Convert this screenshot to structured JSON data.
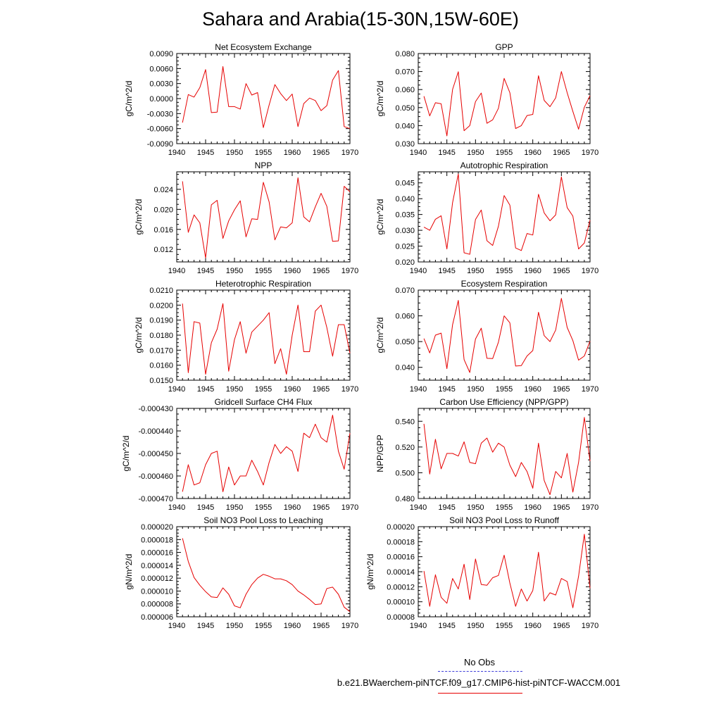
{
  "title": "Sahara and Arabia(15-30N,15W-60E)",
  "legend": {
    "obs_label": "No Obs",
    "obs_color": "#3b3bd9",
    "case_label": "b.e21.BWaerchem-piNTCF.f09_g17.CMIP6-hist-piNTCF-WACCM.001",
    "case_color": "#e60000"
  },
  "chart_data": [
    {
      "type": "line",
      "title": "Net Ecosystem Exchange",
      "ylabel": "gC/m^2/d",
      "xlim": [
        1940,
        1970
      ],
      "ylim": [
        -0.009,
        0.009
      ],
      "xticks": [
        "1940",
        "1945",
        "1950",
        "1955",
        "1960",
        "1965",
        "1970"
      ],
      "yticks": [
        "-0.0090",
        "-0.0060",
        "-0.0030",
        "0.0000",
        "0.0030",
        "0.0060",
        "0.0090"
      ],
      "series": [
        {
          "color": "#e60000",
          "x": [
            1941,
            1942,
            1943,
            1944,
            1945,
            1946,
            1947,
            1948,
            1949,
            1950,
            1951,
            1952,
            1953,
            1954,
            1955,
            1956,
            1957,
            1958,
            1959,
            1960,
            1961,
            1962,
            1963,
            1964,
            1965,
            1966,
            1967,
            1968,
            1969,
            1970
          ],
          "values": [
            -0.0048,
            0.0008,
            0.0003,
            0.0022,
            0.0058,
            -0.0028,
            -0.0027,
            0.0064,
            -0.0016,
            -0.0016,
            -0.0021,
            0.003,
            0.0007,
            0.0012,
            -0.0058,
            -0.0013,
            0.0028,
            0.001,
            -0.0004,
            0.0009,
            -0.0056,
            -0.001,
            0.0001,
            -0.0004,
            -0.0024,
            -0.0014,
            0.0037,
            0.0056,
            -0.0056,
            -0.006
          ]
        }
      ]
    },
    {
      "type": "line",
      "title": "GPP",
      "ylabel": "gC/m^2/d",
      "xlim": [
        1940,
        1970
      ],
      "ylim": [
        0.03,
        0.08
      ],
      "xticks": [
        "1940",
        "1945",
        "1950",
        "1955",
        "1960",
        "1965",
        "1970"
      ],
      "yticks": [
        "0.030",
        "0.040",
        "0.050",
        "0.060",
        "0.070",
        "0.080"
      ],
      "series": [
        {
          "color": "#e60000",
          "x": [
            1941,
            1942,
            1943,
            1944,
            1945,
            1946,
            1947,
            1948,
            1949,
            1950,
            1951,
            1952,
            1953,
            1954,
            1955,
            1956,
            1957,
            1958,
            1959,
            1960,
            1961,
            1962,
            1963,
            1964,
            1965,
            1966,
            1967,
            1968,
            1969,
            1970
          ],
          "values": [
            0.0563,
            0.0454,
            0.0527,
            0.0521,
            0.0343,
            0.0601,
            0.0699,
            0.0372,
            0.04,
            0.0533,
            0.0581,
            0.0413,
            0.0432,
            0.0496,
            0.0662,
            0.0583,
            0.0384,
            0.04,
            0.0456,
            0.0462,
            0.0677,
            0.054,
            0.0505,
            0.0554,
            0.07,
            0.0583,
            0.0479,
            0.038,
            0.0502,
            0.0566
          ]
        }
      ]
    },
    {
      "type": "line",
      "title": "NPP",
      "ylabel": "gC/m^2/d",
      "xlim": [
        1940,
        1970
      ],
      "ylim": [
        0.0095,
        0.0275
      ],
      "xticks": [
        "1940",
        "1945",
        "1950",
        "1955",
        "1960",
        "1965",
        "1970"
      ],
      "yticks": [
        "0.012",
        "0.016",
        "0.020",
        "0.024"
      ],
      "ytick_values": [
        0.012,
        0.016,
        0.02,
        0.024
      ],
      "series": [
        {
          "color": "#e60000",
          "x": [
            1941,
            1942,
            1943,
            1944,
            1945,
            1946,
            1947,
            1948,
            1949,
            1950,
            1951,
            1952,
            1953,
            1954,
            1955,
            1956,
            1957,
            1958,
            1959,
            1960,
            1961,
            1962,
            1963,
            1964,
            1965,
            1966,
            1967,
            1968,
            1969,
            1970
          ],
          "values": [
            0.0256,
            0.0154,
            0.0189,
            0.0173,
            0.0103,
            0.0209,
            0.0218,
            0.0142,
            0.0177,
            0.0199,
            0.0217,
            0.0145,
            0.0181,
            0.018,
            0.0254,
            0.0215,
            0.0139,
            0.0165,
            0.0163,
            0.0173,
            0.0263,
            0.0185,
            0.0175,
            0.0205,
            0.0232,
            0.0206,
            0.0136,
            0.0137,
            0.0246,
            0.0235
          ]
        }
      ]
    },
    {
      "type": "line",
      "title": "Autotrophic Respiration",
      "ylabel": "gC/m^2/d",
      "xlim": [
        1940,
        1970
      ],
      "ylim": [
        0.02,
        0.0485
      ],
      "xticks": [
        "1940",
        "1945",
        "1950",
        "1955",
        "1960",
        "1965",
        "1970"
      ],
      "yticks": [
        "0.020",
        "0.025",
        "0.030",
        "0.035",
        "0.040",
        "0.045"
      ],
      "ytick_values": [
        0.02,
        0.025,
        0.03,
        0.035,
        0.04,
        0.045
      ],
      "series": [
        {
          "color": "#e60000",
          "x": [
            1941,
            1942,
            1943,
            1944,
            1945,
            1946,
            1947,
            1948,
            1949,
            1950,
            1951,
            1952,
            1953,
            1954,
            1955,
            1956,
            1957,
            1958,
            1959,
            1960,
            1961,
            1962,
            1963,
            1964,
            1965,
            1966,
            1967,
            1968,
            1969,
            1970
          ],
          "values": [
            0.031,
            0.03,
            0.0335,
            0.0346,
            0.0241,
            0.0388,
            0.0478,
            0.0229,
            0.0224,
            0.0334,
            0.0364,
            0.0267,
            0.0252,
            0.0313,
            0.041,
            0.038,
            0.0244,
            0.0236,
            0.029,
            0.0285,
            0.0414,
            0.0355,
            0.033,
            0.0349,
            0.0469,
            0.0372,
            0.0345,
            0.0241,
            0.026,
            0.0332
          ]
        }
      ]
    },
    {
      "type": "line",
      "title": "Heterotrophic Respiration",
      "ylabel": "gC/m^2/d",
      "xlim": [
        1940,
        1970
      ],
      "ylim": [
        0.015,
        0.021
      ],
      "xticks": [
        "1940",
        "1945",
        "1950",
        "1955",
        "1960",
        "1965",
        "1970"
      ],
      "yticks": [
        "0.0150",
        "0.0160",
        "0.0170",
        "0.0180",
        "0.0190",
        "0.0200",
        "0.0210"
      ],
      "series": [
        {
          "color": "#e60000",
          "x": [
            1941,
            1942,
            1943,
            1944,
            1945,
            1946,
            1947,
            1948,
            1949,
            1950,
            1951,
            1952,
            1953,
            1954,
            1955,
            1956,
            1957,
            1958,
            1959,
            1960,
            1961,
            1962,
            1963,
            1964,
            1965,
            1966,
            1967,
            1968,
            1969,
            1970
          ],
          "values": [
            0.0201,
            0.0155,
            0.0189,
            0.0188,
            0.0154,
            0.0175,
            0.0184,
            0.0201,
            0.0156,
            0.0177,
            0.0189,
            0.0168,
            0.0182,
            0.0186,
            0.019,
            0.0195,
            0.0161,
            0.0171,
            0.0154,
            0.018,
            0.02,
            0.0169,
            0.0169,
            0.0196,
            0.02,
            0.0185,
            0.0166,
            0.0187,
            0.0187,
            0.0168
          ]
        }
      ]
    },
    {
      "type": "line",
      "title": "Ecosystem Respiration",
      "ylabel": "gC/m^2/d",
      "xlim": [
        1940,
        1970
      ],
      "ylim": [
        0.035,
        0.07
      ],
      "xticks": [
        "1940",
        "1945",
        "1950",
        "1955",
        "1960",
        "1965",
        "1970"
      ],
      "yticks": [
        "0.040",
        "0.050",
        "0.060",
        "0.070"
      ],
      "ytick_values": [
        0.04,
        0.05,
        0.06,
        0.07
      ],
      "series": [
        {
          "color": "#e60000",
          "x": [
            1941,
            1942,
            1943,
            1944,
            1945,
            1946,
            1947,
            1948,
            1949,
            1950,
            1951,
            1952,
            1953,
            1954,
            1955,
            1956,
            1957,
            1958,
            1959,
            1960,
            1961,
            1962,
            1963,
            1964,
            1965,
            1966,
            1967,
            1968,
            1969,
            1970
          ],
          "values": [
            0.0512,
            0.0456,
            0.0525,
            0.0533,
            0.0395,
            0.0566,
            0.066,
            0.043,
            0.038,
            0.051,
            0.0552,
            0.0435,
            0.0434,
            0.0498,
            0.06,
            0.0573,
            0.0405,
            0.0407,
            0.0444,
            0.0465,
            0.0614,
            0.0523,
            0.05,
            0.0545,
            0.0668,
            0.0555,
            0.0504,
            0.0428,
            0.0444,
            0.0502
          ]
        }
      ]
    },
    {
      "type": "line",
      "title": "Gridcell Surface CH4 Flux",
      "ylabel": "gC/m^2/d",
      "xlim": [
        1940,
        1970
      ],
      "ylim": [
        -0.00047,
        -0.00043
      ],
      "xticks": [
        "1940",
        "1945",
        "1950",
        "1955",
        "1960",
        "1965",
        "1970"
      ],
      "yticks": [
        "-0.000470",
        "-0.000460",
        "-0.000450",
        "-0.000440",
        "-0.000430"
      ],
      "series": [
        {
          "color": "#e60000",
          "x": [
            1941,
            1942,
            1943,
            1944,
            1945,
            1946,
            1947,
            1948,
            1949,
            1950,
            1951,
            1952,
            1953,
            1954,
            1955,
            1956,
            1957,
            1958,
            1959,
            1960,
            1961,
            1962,
            1963,
            1964,
            1965,
            1966,
            1967,
            1968,
            1969,
            1970
          ],
          "values": [
            -0.000467,
            -0.000455,
            -0.000464,
            -0.000463,
            -0.000455,
            -0.00045,
            -0.000449,
            -0.000467,
            -0.000456,
            -0.000464,
            -0.00046,
            -0.00046,
            -0.000453,
            -0.000458,
            -0.000464,
            -0.000454,
            -0.000446,
            -0.00045,
            -0.000447,
            -0.000449,
            -0.000458,
            -0.000441,
            -0.000443,
            -0.000437,
            -0.000443,
            -0.000445,
            -0.000433,
            -0.000449,
            -0.000457,
            -0.000441
          ]
        }
      ]
    },
    {
      "type": "line",
      "title": "Carbon Use Efficiency (NPP/GPP)",
      "ylabel": "NPP/GPP",
      "xlim": [
        1940,
        1970
      ],
      "ylim": [
        0.48,
        0.55
      ],
      "xticks": [
        "1940",
        "1945",
        "1950",
        "1955",
        "1960",
        "1965",
        "1970"
      ],
      "yticks": [
        "0.480",
        "0.500",
        "0.520",
        "0.540"
      ],
      "ytick_values": [
        0.48,
        0.5,
        0.52,
        0.54
      ],
      "series": [
        {
          "color": "#e60000",
          "x": [
            1941,
            1942,
            1943,
            1944,
            1945,
            1946,
            1947,
            1948,
            1949,
            1950,
            1951,
            1952,
            1953,
            1954,
            1955,
            1956,
            1957,
            1958,
            1959,
            1960,
            1961,
            1962,
            1963,
            1964,
            1965,
            1966,
            1967,
            1968,
            1969,
            1970
          ],
          "values": [
            0.538,
            0.499,
            0.526,
            0.503,
            0.515,
            0.515,
            0.513,
            0.524,
            0.508,
            0.507,
            0.523,
            0.527,
            0.516,
            0.523,
            0.52,
            0.506,
            0.497,
            0.508,
            0.501,
            0.488,
            0.523,
            0.494,
            0.483,
            0.501,
            0.496,
            0.515,
            0.485,
            0.508,
            0.543,
            0.509
          ]
        }
      ]
    },
    {
      "type": "line",
      "title": "Soil NO3 Pool Loss to Leaching",
      "ylabel": "gN/m^2/d",
      "xlim": [
        1940,
        1970
      ],
      "ylim": [
        6e-06,
        2e-05
      ],
      "xticks": [
        "1940",
        "1945",
        "1950",
        "1955",
        "1960",
        "1965",
        "1970"
      ],
      "yticks": [
        "0.000006",
        "0.000008",
        "0.000010",
        "0.000012",
        "0.000014",
        "0.000016",
        "0.000018",
        "0.000020"
      ],
      "series": [
        {
          "color": "#e60000",
          "x": [
            1941,
            1942,
            1943,
            1944,
            1945,
            1946,
            1947,
            1948,
            1949,
            1950,
            1951,
            1952,
            1953,
            1954,
            1955,
            1956,
            1957,
            1958,
            1959,
            1960,
            1961,
            1962,
            1963,
            1964,
            1965,
            1966,
            1967,
            1968,
            1969,
            1970
          ],
          "values": [
            1.82e-05,
            1.46e-05,
            1.21e-05,
            1.09e-05,
            9.9e-06,
            9.1e-06,
            9e-06,
            1.05e-05,
            9.5e-06,
            7.7e-06,
            7.4e-06,
            9.5e-06,
            1.1e-05,
            1.2e-05,
            1.26e-05,
            1.23e-05,
            1.19e-05,
            1.19e-05,
            1.16e-05,
            1.1e-05,
            1e-05,
            9.4e-06,
            8.7e-06,
            7.9e-06,
            8e-06,
            1.04e-05,
            1.06e-05,
            9.5e-06,
            7.5e-06,
            6.8e-06
          ]
        }
      ]
    },
    {
      "type": "line",
      "title": "Soil NO3 Pool Loss to Runoff",
      "ylabel": "gN/m^2/d",
      "xlim": [
        1940,
        1970
      ],
      "ylim": [
        8e-05,
        0.0002
      ],
      "xticks": [
        "1940",
        "1945",
        "1950",
        "1955",
        "1960",
        "1965",
        "1970"
      ],
      "yticks": [
        "0.00008",
        "0.00010",
        "0.00012",
        "0.00014",
        "0.00016",
        "0.00018",
        "0.00020"
      ],
      "series": [
        {
          "color": "#e60000",
          "x": [
            1941,
            1942,
            1943,
            1944,
            1945,
            1946,
            1947,
            1948,
            1949,
            1950,
            1951,
            1952,
            1953,
            1954,
            1955,
            1956,
            1957,
            1958,
            1959,
            1960,
            1961,
            1962,
            1963,
            1964,
            1965,
            1966,
            1967,
            1968,
            1969,
            1970
          ],
          "values": [
            0.000141,
            9.4e-05,
            0.000136,
            0.000106,
            9.8e-05,
            0.000131,
            0.000117,
            0.00015,
            0.000103,
            0.000157,
            0.000123,
            0.000122,
            0.000132,
            0.000135,
            0.000162,
            0.000125,
            9.4e-05,
            0.000117,
            0.000101,
            0.000115,
            0.000166,
            0.000101,
            0.000112,
            0.000109,
            0.000131,
            0.000127,
            9.2e-05,
            0.000134,
            0.00019,
            0.000118
          ]
        }
      ]
    }
  ]
}
